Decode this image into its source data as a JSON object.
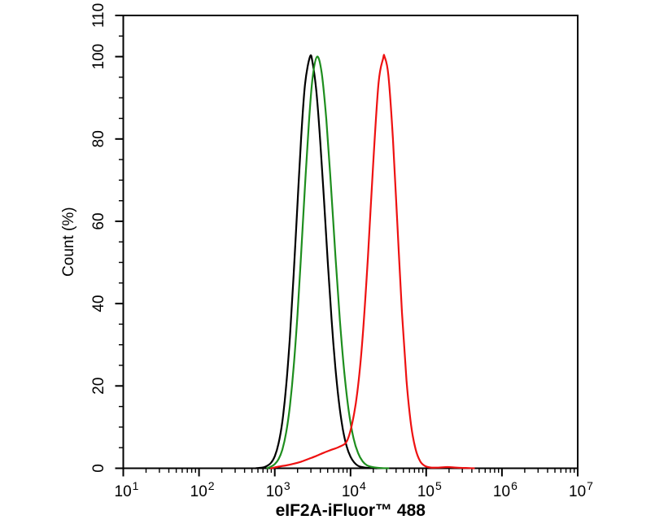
{
  "chart_data": {
    "type": "line",
    "subtype": "flow-cytometry-histogram",
    "title": "",
    "xlabel": "eIF2A-iFluor™ 488",
    "ylabel": "Count (%)",
    "x_scale": "log10",
    "x_range_log": [
      1,
      7
    ],
    "x_major_exponents": [
      1,
      2,
      3,
      4,
      5,
      6,
      7
    ],
    "x_tick_base": "10",
    "ylim": [
      0,
      110
    ],
    "y_major_ticks": [
      0,
      20,
      40,
      60,
      80,
      100,
      110
    ],
    "y_minor_step": 5,
    "grid": false,
    "legend": null,
    "axis_color": "#000000",
    "background_color": "#ffffff",
    "points_format": [
      "log10_x",
      "count_percent"
    ],
    "series": [
      {
        "name": "black-curve",
        "color": "#000000",
        "peak": {
          "log10_x": 3.465,
          "x": 2900,
          "count_percent": 100
        },
        "points": [
          [
            2.75,
            0
          ],
          [
            2.85,
            0.2
          ],
          [
            2.9,
            0.6
          ],
          [
            2.95,
            1.3
          ],
          [
            3.0,
            2.9
          ],
          [
            3.05,
            6.0
          ],
          [
            3.1,
            11.3
          ],
          [
            3.15,
            19.8
          ],
          [
            3.2,
            31.8
          ],
          [
            3.25,
            47.0
          ],
          [
            3.3,
            64.1
          ],
          [
            3.35,
            80.6
          ],
          [
            3.4,
            93.3
          ],
          [
            3.465,
            100
          ],
          [
            3.5,
            98.5
          ],
          [
            3.55,
            91.4
          ],
          [
            3.6,
            79.6
          ],
          [
            3.65,
            65.2
          ],
          [
            3.7,
            50.2
          ],
          [
            3.75,
            36.2
          ],
          [
            3.8,
            24.6
          ],
          [
            3.85,
            15.7
          ],
          [
            3.9,
            9.4
          ],
          [
            3.95,
            5.3
          ],
          [
            4.0,
            2.8
          ],
          [
            4.05,
            1.4
          ],
          [
            4.1,
            0.6
          ],
          [
            4.15,
            0.3
          ],
          [
            4.22,
            0.1
          ],
          [
            4.35,
            0
          ]
        ]
      },
      {
        "name": "green-curve",
        "color": "#1e8e1e",
        "peak": {
          "log10_x": 3.56,
          "x": 3630,
          "count_percent": 100
        },
        "points": [
          [
            2.9,
            0
          ],
          [
            2.95,
            0.4
          ],
          [
            3.0,
            1.0
          ],
          [
            3.05,
            2.2
          ],
          [
            3.1,
            4.5
          ],
          [
            3.15,
            8.6
          ],
          [
            3.2,
            15.1
          ],
          [
            3.25,
            24.6
          ],
          [
            3.3,
            37.2
          ],
          [
            3.35,
            52.5
          ],
          [
            3.4,
            68.8
          ],
          [
            3.45,
            83.8
          ],
          [
            3.5,
            94.9
          ],
          [
            3.56,
            100
          ],
          [
            3.62,
            96.0
          ],
          [
            3.68,
            84.9
          ],
          [
            3.74,
            69.3
          ],
          [
            3.8,
            52.0
          ],
          [
            3.86,
            36.0
          ],
          [
            3.92,
            23.0
          ],
          [
            3.98,
            13.5
          ],
          [
            4.04,
            7.3
          ],
          [
            4.1,
            3.7
          ],
          [
            4.16,
            1.7
          ],
          [
            4.22,
            0.7
          ],
          [
            4.3,
            0.25
          ],
          [
            4.4,
            0.05
          ],
          [
            4.5,
            0
          ]
        ]
      },
      {
        "name": "red-curve",
        "color": "#ee1111",
        "peak": {
          "log10_x": 4.45,
          "x": 28200,
          "count_percent": 100
        },
        "points": [
          [
            2.95,
            0
          ],
          [
            3.05,
            0.4
          ],
          [
            3.15,
            0.7
          ],
          [
            3.25,
            1.1
          ],
          [
            3.35,
            1.6
          ],
          [
            3.45,
            2.3
          ],
          [
            3.55,
            3.0
          ],
          [
            3.65,
            3.8
          ],
          [
            3.75,
            4.5
          ],
          [
            3.85,
            5.2
          ],
          [
            3.95,
            6.5
          ],
          [
            4.02,
            10.7
          ],
          [
            4.09,
            18.4
          ],
          [
            4.16,
            31.7
          ],
          [
            4.23,
            51.3
          ],
          [
            4.3,
            74.1
          ],
          [
            4.37,
            93.5
          ],
          [
            4.43,
            99.5
          ],
          [
            4.45,
            100
          ],
          [
            4.5,
            95.5
          ],
          [
            4.56,
            80.1
          ],
          [
            4.62,
            58.8
          ],
          [
            4.68,
            37.9
          ],
          [
            4.74,
            21.3
          ],
          [
            4.8,
            10.5
          ],
          [
            4.86,
            4.6
          ],
          [
            4.92,
            1.7
          ],
          [
            4.98,
            0.6
          ],
          [
            5.05,
            0.2
          ],
          [
            5.15,
            0.15
          ],
          [
            5.28,
            0.3
          ],
          [
            5.4,
            0.15
          ],
          [
            5.55,
            0.05
          ],
          [
            5.63,
            0
          ]
        ]
      }
    ]
  }
}
